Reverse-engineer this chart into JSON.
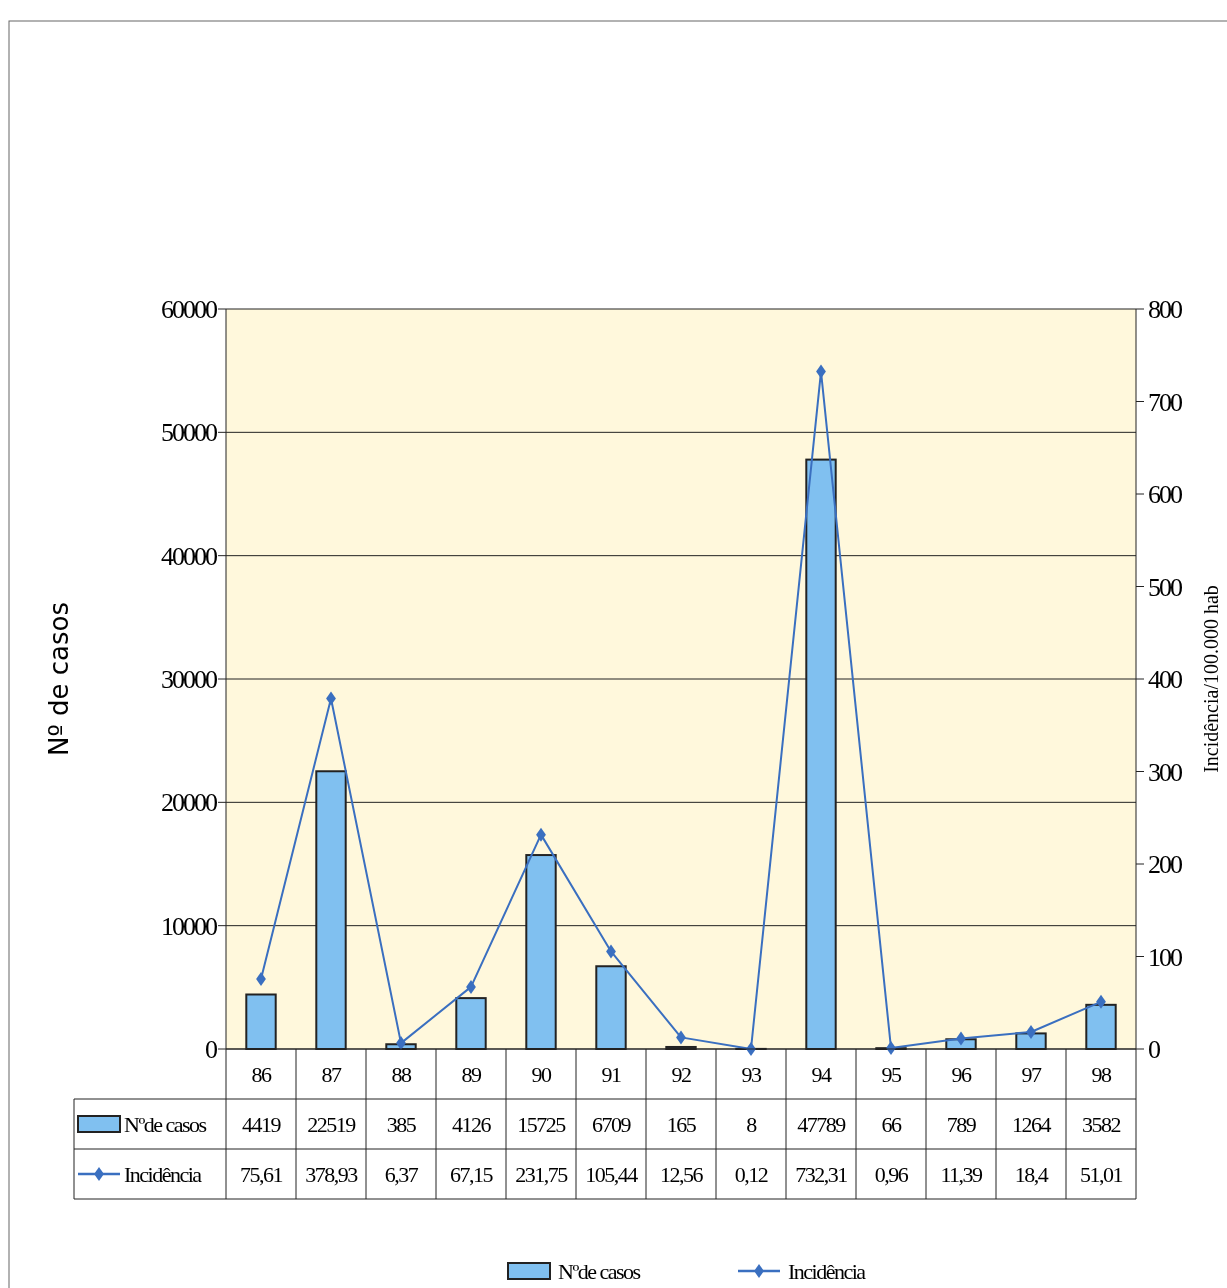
{
  "chart_data": {
    "type": "bar",
    "ylabel": "Nº de casos",
    "y2label": "Incidência/100.000 hab",
    "categories": [
      "86",
      "87",
      "88",
      "89",
      "90",
      "91",
      "92",
      "93",
      "94",
      "95",
      "96",
      "97",
      "98"
    ],
    "series": [
      {
        "name": "Nºde casos",
        "color": "#80c0f0",
        "values": [
          4419,
          22519,
          385,
          4126,
          15725,
          6709,
          165,
          8,
          47789,
          66,
          789,
          1264,
          3582
        ],
        "value_labels": [
          "4419",
          "22519",
          "385",
          "4126",
          "15725",
          "6709",
          "165",
          "8",
          "47789",
          "66",
          "789",
          "1264",
          "3582"
        ]
      },
      {
        "name": "Incidência",
        "type": "line",
        "axis": "y2",
        "color": "#3a6fc0",
        "values": [
          75.61,
          378.93,
          6.37,
          67.15,
          231.75,
          105.44,
          12.56,
          0.12,
          732.31,
          0.96,
          11.39,
          18.4,
          51.01
        ],
        "value_labels": [
          "75,61",
          "378,93",
          "6,37",
          "67,15",
          "231,75",
          "105,44",
          "12,56",
          "0,12",
          "732,31",
          "0,96",
          "11,39",
          "18,4",
          "51,01"
        ]
      }
    ],
    "ylim": [
      0,
      60000
    ],
    "yticks": [
      0,
      10000,
      20000,
      30000,
      40000,
      50000,
      60000
    ],
    "y2lim": [
      0,
      800
    ],
    "y2ticks": [
      0,
      100,
      200,
      300,
      400,
      500,
      600,
      700,
      800
    ],
    "grid": "y",
    "legend": "bottom",
    "marker": "diamond",
    "line_style": "solid"
  }
}
